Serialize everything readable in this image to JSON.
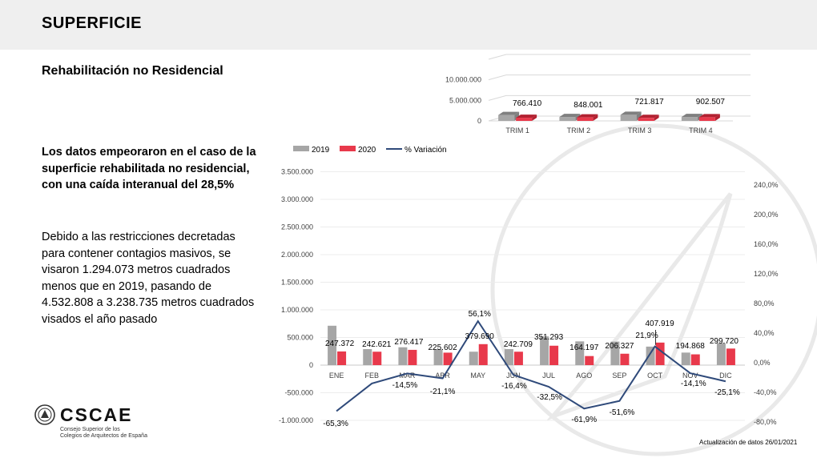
{
  "header": {
    "title": "SUPERFICIE"
  },
  "subtitle": "Rehabilitación no Residencial",
  "highlight": "Los datos empeoraron en el caso de la superficie rehabilitada no residencial, con una caída interanual del 28,5%",
  "paragraph": "Debido a las restricciones decretadas para contener contagios masivos, se visaron 1.294.073 metros cuadrados menos que en 2019, pasando de 4.532.808 a 3.238.735 metros cuadrados visados el año pasado",
  "logo": {
    "name": "CSCAE",
    "line1": "Consejo Superior de los",
    "line2": "Colegios de Arquitectos de España"
  },
  "footer": {
    "update": "Actualización de datos 26/01/2021"
  },
  "colors": {
    "s2019": "#a6a6a6",
    "s2020": "#e8394b",
    "variation": "#2f4a7a"
  },
  "chart_data": [
    {
      "type": "bar",
      "categories": [
        "TRIM 1",
        "TRIM 2",
        "TRIM 3",
        "TRIM 4"
      ],
      "series": [
        {
          "name": "2019",
          "values": [
            1440000,
            960000,
            1480000,
            960000
          ]
        },
        {
          "name": "2020",
          "values": [
            766410,
            848001,
            721817,
            902507
          ]
        }
      ],
      "data_labels": [
        "766.410",
        "848.001",
        "721.817",
        "902.507"
      ],
      "yticks": [
        "0",
        "5.000.000",
        "10.000.000"
      ],
      "ylim": [
        0,
        15000000
      ],
      "grid": true
    },
    {
      "type": "bar",
      "categories": [
        "ENE",
        "FEB",
        "MAR",
        "ABR",
        "MAY",
        "JUN",
        "JUL",
        "AGO",
        "SEP",
        "OCT",
        "NOV",
        "DIC"
      ],
      "series": [
        {
          "name": "2019",
          "values": [
            713000,
            290000,
            323000,
            286000,
            243000,
            290000,
            520000,
            430000,
            426000,
            335000,
            227000,
            400000
          ]
        },
        {
          "name": "2020",
          "values": [
            247372,
            242621,
            276417,
            225602,
            379690,
            242709,
            351293,
            164197,
            206327,
            407919,
            194868,
            299720
          ]
        },
        {
          "name": "% Variación",
          "axis": "secondary",
          "values": [
            -65.3,
            -28.0,
            -14.5,
            -21.1,
            56.1,
            -16.4,
            -32.5,
            -61.9,
            -51.6,
            21.9,
            -14.1,
            -25.1
          ]
        }
      ],
      "bar_labels": [
        "247.372",
        "242.621",
        "276.417",
        "225.602",
        "379.690",
        "242.709",
        "351.293",
        "164.197",
        "206.327",
        "407.919",
        "194.868",
        "299.720"
      ],
      "line_labels": [
        "-65,3%",
        "",
        "-14,5%",
        "-21,1%",
        "56,1%",
        "-16,4%",
        "-32,5%",
        "-61,9%",
        "-51,6%",
        "21,9%",
        "-14,1%",
        "-25,1%"
      ],
      "yticks": [
        "-1.000.000",
        "-500.000",
        "0",
        "500.000",
        "1.000.000",
        "1.500.000",
        "2.000.000",
        "2.500.000",
        "3.000.000",
        "3.500.000"
      ],
      "ylim": [
        -1000000,
        3500000
      ],
      "y2ticks": [
        "-80,0%",
        "-40,0%",
        "0,0%",
        "40,0%",
        "80,0%",
        "120,0%",
        "160,0%",
        "200,0%",
        "240,0%"
      ],
      "y2lim": [
        -80,
        240
      ],
      "legend": {
        "position": "top-left",
        "entries": [
          "2019",
          "2020",
          "% Variación"
        ]
      },
      "grid": true
    }
  ]
}
